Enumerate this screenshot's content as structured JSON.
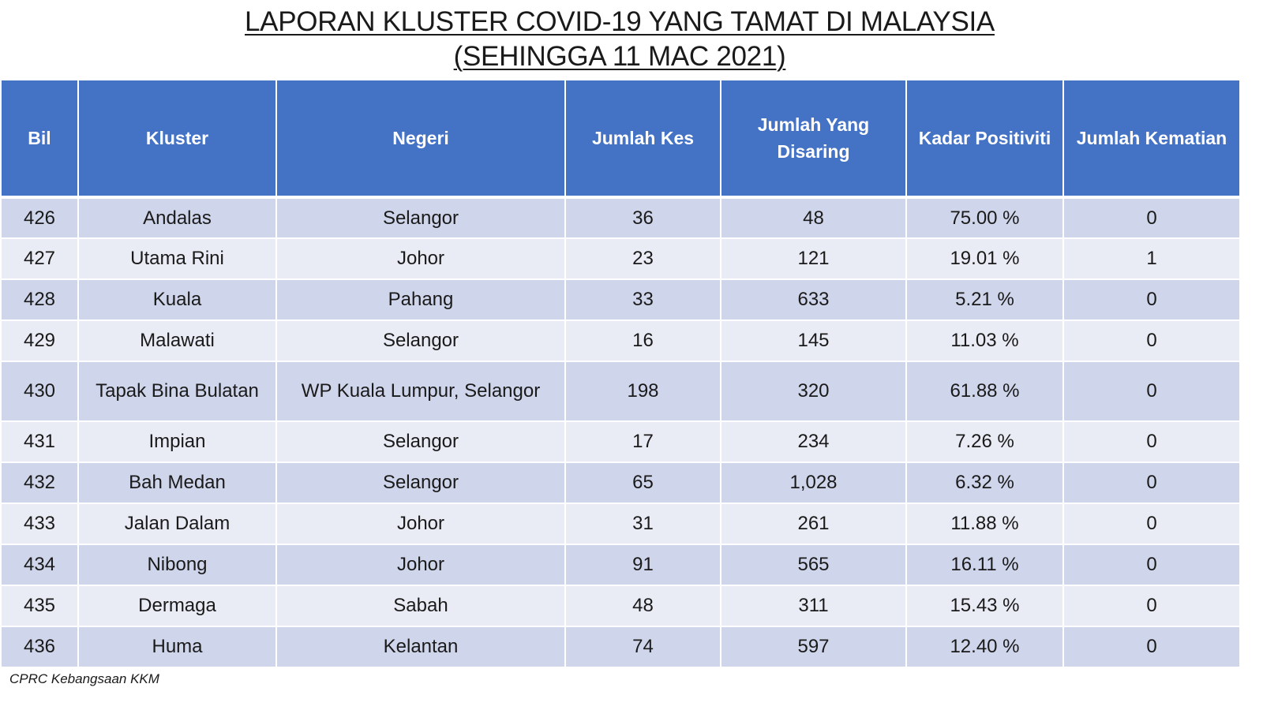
{
  "title": {
    "line1": "LAPORAN KLUSTER COVID-19 YANG TAMAT DI MALAYSIA",
    "line2": "(SEHINGGA  11 MAC 2021)"
  },
  "table": {
    "headers": {
      "bil": "Bil",
      "kluster": "Kluster",
      "negeri": "Negeri",
      "jumlah_kes": "Jumlah Kes",
      "jumlah_disaring": "Jumlah Yang Disaring",
      "kadar_positiviti": "Kadar Positiviti",
      "jumlah_kematian": "Jumlah Kematian"
    },
    "rows": [
      {
        "bil": "426",
        "kluster": "Andalas",
        "negeri": "Selangor",
        "kes": "36",
        "disaring": "48",
        "positiviti": "75.00 %",
        "kematian": "0"
      },
      {
        "bil": "427",
        "kluster": "Utama Rini",
        "negeri": "Johor",
        "kes": "23",
        "disaring": "121",
        "positiviti": "19.01 %",
        "kematian": "1"
      },
      {
        "bil": "428",
        "kluster": "Kuala",
        "negeri": "Pahang",
        "kes": "33",
        "disaring": "633",
        "positiviti": "5.21 %",
        "kematian": "0"
      },
      {
        "bil": "429",
        "kluster": "Malawati",
        "negeri": "Selangor",
        "kes": "16",
        "disaring": "145",
        "positiviti": "11.03 %",
        "kematian": "0"
      },
      {
        "bil": "430",
        "kluster": "Tapak Bina Bulatan",
        "negeri": "WP Kuala Lumpur, Selangor",
        "kes": "198",
        "disaring": "320",
        "positiviti": "61.88 %",
        "kematian": "0"
      },
      {
        "bil": "431",
        "kluster": "Impian",
        "negeri": "Selangor",
        "kes": "17",
        "disaring": "234",
        "positiviti": "7.26 %",
        "kematian": "0"
      },
      {
        "bil": "432",
        "kluster": "Bah Medan",
        "negeri": "Selangor",
        "kes": "65",
        "disaring": "1,028",
        "positiviti": "6.32 %",
        "kematian": "0"
      },
      {
        "bil": "433",
        "kluster": "Jalan Dalam",
        "negeri": "Johor",
        "kes": "31",
        "disaring": "261",
        "positiviti": "11.88 %",
        "kematian": "0"
      },
      {
        "bil": "434",
        "kluster": "Nibong",
        "negeri": "Johor",
        "kes": "91",
        "disaring": "565",
        "positiviti": "16.11 %",
        "kematian": "0"
      },
      {
        "bil": "435",
        "kluster": "Dermaga",
        "negeri": "Sabah",
        "kes": "48",
        "disaring": "311",
        "positiviti": "15.43 %",
        "kematian": "0"
      },
      {
        "bil": "436",
        "kluster": "Huma",
        "negeri": "Kelantan",
        "kes": "74",
        "disaring": "597",
        "positiviti": "12.40 %",
        "kematian": "0"
      }
    ]
  },
  "source": "CPRC Kebangsaan KKM",
  "colors": {
    "header_bg": "#4472c4",
    "row_odd_bg": "#cfd5ea",
    "row_even_bg": "#e9ebf5",
    "header_text": "#ffffff"
  }
}
